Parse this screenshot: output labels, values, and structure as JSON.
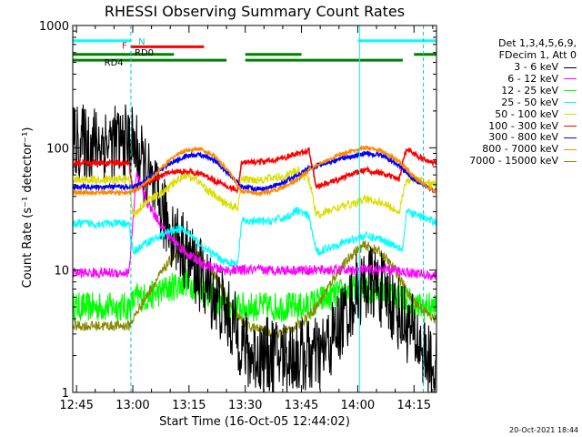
{
  "chart_data": {
    "type": "line",
    "title": "RHESSI Observing Summary Count Rates",
    "xlabel": "Start Time (16-Oct-05 12:44:02)",
    "ylabel": "Count Rate (s⁻¹ detector⁻¹)",
    "yscale": "log",
    "ylim": [
      1,
      1000
    ],
    "xlim_minutes": [
      0,
      97
    ],
    "x_unit": "minutes after 12:44:02",
    "x_ticks": [
      {
        "label": "12:45",
        "t": 1
      },
      {
        "label": "13:00",
        "t": 16
      },
      {
        "label": "13:15",
        "t": 31
      },
      {
        "label": "13:30",
        "t": 46
      },
      {
        "label": "13:45",
        "t": 61
      },
      {
        "label": "14:00",
        "t": 76
      },
      {
        "label": "14:15",
        "t": 91
      }
    ],
    "y_ticks": [
      1,
      10,
      100,
      1000
    ],
    "legend_header": [
      "Det 1,3,4,5,6,9,",
      "FDecim 1, Att 0"
    ],
    "legend_placement": "right",
    "series": [
      {
        "name": "3 - 6 keV",
        "color": "#000000",
        "noise": 0.9,
        "points": [
          [
            16,
            110
          ],
          [
            18,
            80
          ],
          [
            22,
            40
          ],
          [
            26,
            22
          ],
          [
            30,
            14
          ],
          [
            35,
            8
          ],
          [
            40,
            5
          ],
          [
            44,
            3
          ],
          [
            47,
            2
          ],
          [
            55,
            2
          ],
          [
            62,
            2
          ],
          [
            66,
            2
          ],
          [
            70,
            3
          ],
          [
            76,
            7
          ],
          [
            80,
            8
          ],
          [
            84,
            6
          ],
          [
            88,
            4
          ],
          [
            91,
            3
          ],
          [
            94,
            2
          ],
          [
            96,
            1.5
          ]
        ]
      },
      {
        "name": "6 - 12 keV",
        "color": "#ff00ff",
        "noise": 0.12,
        "points": [
          [
            0,
            9.5
          ],
          [
            15,
            9.5
          ],
          [
            17,
            60
          ],
          [
            20,
            35
          ],
          [
            25,
            20
          ],
          [
            30,
            14
          ],
          [
            35,
            11
          ],
          [
            40,
            10
          ],
          [
            50,
            10
          ],
          [
            60,
            10
          ],
          [
            75,
            10
          ],
          [
            85,
            10
          ],
          [
            96,
            9
          ]
        ]
      },
      {
        "name": "12 - 25 keV",
        "color": "#00ff00",
        "noise": 0.35,
        "points": [
          [
            0,
            5
          ],
          [
            15,
            5
          ],
          [
            17,
            6
          ],
          [
            20,
            6
          ],
          [
            25,
            7
          ],
          [
            30,
            8
          ],
          [
            35,
            7
          ],
          [
            40,
            5
          ],
          [
            45,
            5
          ],
          [
            55,
            5
          ],
          [
            62,
            5
          ],
          [
            68,
            6
          ],
          [
            75,
            7
          ],
          [
            82,
            7
          ],
          [
            88,
            6
          ],
          [
            92,
            5
          ],
          [
            96,
            5
          ]
        ]
      },
      {
        "name": "25 - 50 keV",
        "color": "#00ffff",
        "noise": 0.1,
        "points": [
          [
            0,
            24
          ],
          [
            15,
            24
          ],
          [
            16,
            14
          ],
          [
            20,
            17
          ],
          [
            25,
            20
          ],
          [
            28,
            22
          ],
          [
            31,
            20
          ],
          [
            35,
            15
          ],
          [
            40,
            12
          ],
          [
            44,
            11
          ],
          [
            45,
            25
          ],
          [
            52,
            25
          ],
          [
            57,
            27
          ],
          [
            60,
            31
          ],
          [
            63,
            27
          ],
          [
            65,
            14
          ],
          [
            70,
            16
          ],
          [
            75,
            18
          ],
          [
            78,
            19
          ],
          [
            82,
            18
          ],
          [
            88,
            15
          ],
          [
            89,
            30
          ],
          [
            92,
            28
          ],
          [
            96,
            25
          ]
        ]
      },
      {
        "name": "50 - 100 keV",
        "color": "#dddd00",
        "noise": 0.1,
        "points": [
          [
            0,
            55
          ],
          [
            15,
            55
          ],
          [
            16,
            28
          ],
          [
            19,
            35
          ],
          [
            22,
            40
          ],
          [
            25,
            45
          ],
          [
            28,
            55
          ],
          [
            30,
            60
          ],
          [
            33,
            55
          ],
          [
            36,
            45
          ],
          [
            40,
            36
          ],
          [
            44,
            32
          ],
          [
            45,
            55
          ],
          [
            50,
            55
          ],
          [
            56,
            58
          ],
          [
            60,
            65
          ],
          [
            63,
            55
          ],
          [
            65,
            28
          ],
          [
            70,
            32
          ],
          [
            75,
            35
          ],
          [
            78,
            38
          ],
          [
            82,
            36
          ],
          [
            87,
            30
          ],
          [
            89,
            55
          ],
          [
            92,
            55
          ],
          [
            96,
            50
          ]
        ]
      },
      {
        "name": "100 - 300 keV",
        "color": "#ff0000",
        "noise": 0.06,
        "points": [
          [
            0,
            75
          ],
          [
            15,
            75
          ],
          [
            16,
            45
          ],
          [
            20,
            52
          ],
          [
            25,
            62
          ],
          [
            30,
            65
          ],
          [
            35,
            60
          ],
          [
            40,
            50
          ],
          [
            44,
            45
          ],
          [
            45,
            75
          ],
          [
            52,
            78
          ],
          [
            56,
            82
          ],
          [
            60,
            90
          ],
          [
            63,
            95
          ],
          [
            65,
            48
          ],
          [
            70,
            54
          ],
          [
            75,
            62
          ],
          [
            78,
            66
          ],
          [
            82,
            62
          ],
          [
            87,
            55
          ],
          [
            89,
            100
          ],
          [
            92,
            85
          ],
          [
            96,
            75
          ]
        ]
      },
      {
        "name": "300 - 800 keV",
        "color": "#0000ff",
        "noise": 0.05,
        "points": [
          [
            0,
            48
          ],
          [
            15,
            48
          ],
          [
            18,
            50
          ],
          [
            22,
            62
          ],
          [
            26,
            75
          ],
          [
            30,
            85
          ],
          [
            34,
            88
          ],
          [
            38,
            78
          ],
          [
            42,
            60
          ],
          [
            45,
            48
          ],
          [
            50,
            46
          ],
          [
            55,
            50
          ],
          [
            60,
            60
          ],
          [
            63,
            68
          ],
          [
            66,
            72
          ],
          [
            72,
            82
          ],
          [
            78,
            90
          ],
          [
            82,
            88
          ],
          [
            87,
            72
          ],
          [
            91,
            55
          ],
          [
            96,
            45
          ]
        ]
      },
      {
        "name": "800 - 7000 keV",
        "color": "#ff8800",
        "noise": 0.04,
        "points": [
          [
            0,
            43
          ],
          [
            15,
            43
          ],
          [
            18,
            48
          ],
          [
            22,
            60
          ],
          [
            26,
            80
          ],
          [
            30,
            95
          ],
          [
            34,
            98
          ],
          [
            38,
            85
          ],
          [
            42,
            62
          ],
          [
            45,
            44
          ],
          [
            50,
            42
          ],
          [
            55,
            46
          ],
          [
            60,
            55
          ],
          [
            63,
            66
          ],
          [
            66,
            75
          ],
          [
            72,
            90
          ],
          [
            78,
            100
          ],
          [
            82,
            95
          ],
          [
            87,
            78
          ],
          [
            91,
            58
          ],
          [
            96,
            44
          ]
        ]
      },
      {
        "name": "7000 - 15000 keV",
        "color": "#888800",
        "noise": 0.12,
        "points": [
          [
            0,
            3.5
          ],
          [
            15,
            3.5
          ],
          [
            18,
            5
          ],
          [
            22,
            8
          ],
          [
            26,
            12
          ],
          [
            30,
            15
          ],
          [
            34,
            13
          ],
          [
            38,
            9
          ],
          [
            42,
            5
          ],
          [
            46,
            3.5
          ],
          [
            55,
            3
          ],
          [
            60,
            3.5
          ],
          [
            65,
            5
          ],
          [
            70,
            9
          ],
          [
            75,
            14
          ],
          [
            78,
            16
          ],
          [
            82,
            14
          ],
          [
            86,
            10
          ],
          [
            90,
            6
          ],
          [
            96,
            4
          ]
        ]
      }
    ],
    "instrument_bars": [
      {
        "label": "N",
        "color": "#00ffff",
        "segments": [
          [
            0,
            15.5
          ],
          [
            76,
            97
          ]
        ],
        "level": 750
      },
      {
        "label": "F",
        "color": "#ff0000",
        "segments": [
          [
            15.5,
            35
          ]
        ],
        "level": 670
      },
      {
        "label": "RD0",
        "color": "#008000",
        "segments": [
          [
            0,
            16
          ],
          [
            16,
            27
          ],
          [
            46,
            61
          ],
          [
            91,
            97
          ]
        ],
        "level": 580
      },
      {
        "label": "RD4",
        "color": "#008000",
        "segments": [
          [
            0,
            16
          ],
          [
            16,
            41
          ],
          [
            46,
            61
          ],
          [
            61,
            88
          ]
        ],
        "level": 520
      }
    ],
    "dashed_lines": [
      15.5,
      93.5
    ],
    "solid_lines": [
      0,
      76.5
    ]
  },
  "footer": {
    "date": "20-Oct-2021 18:44"
  }
}
